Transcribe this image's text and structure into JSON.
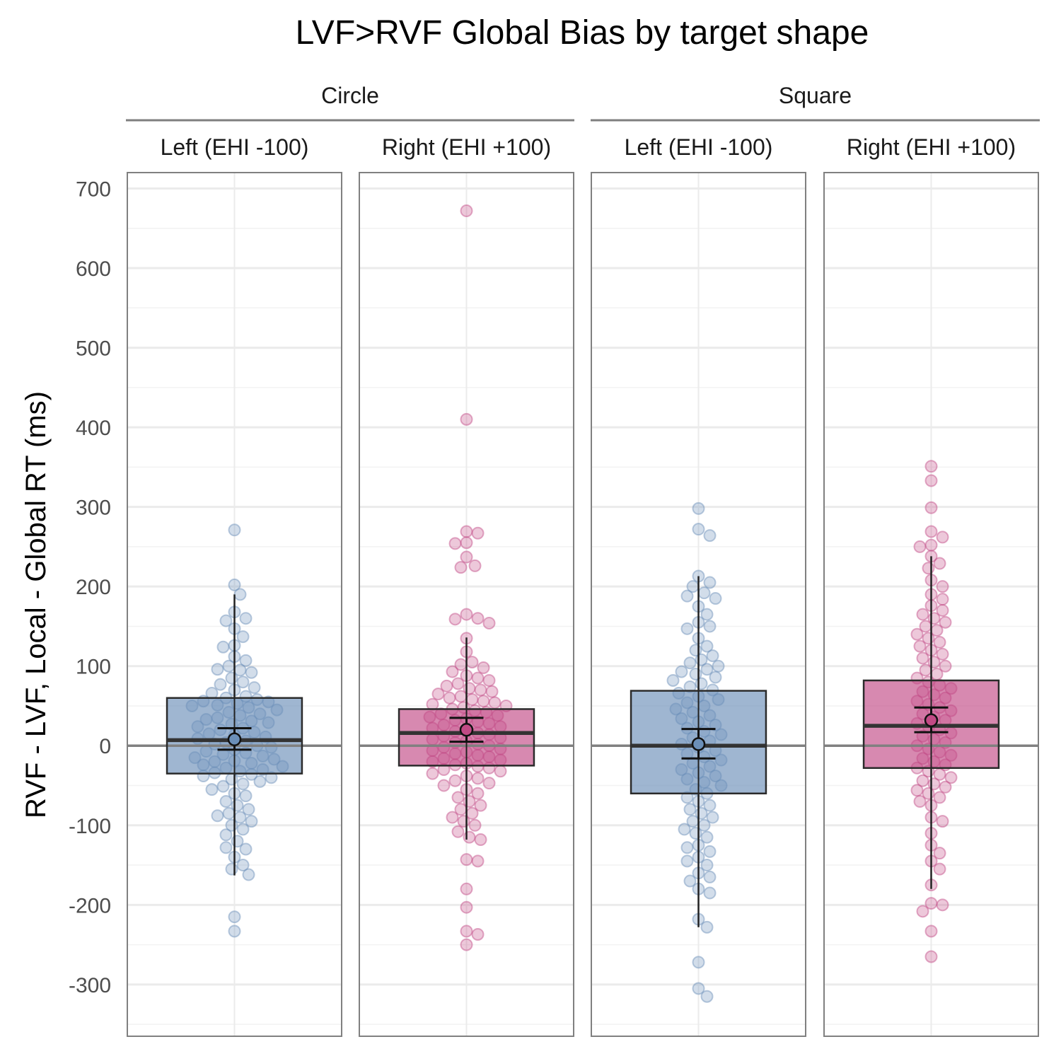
{
  "chart_data": {
    "type": "box",
    "title": "LVF>RVF Global Bias by target shape",
    "ylabel": "RVF - LVF, Local - Global RT (ms)",
    "xlabel": "",
    "ylim": [
      -365,
      720
    ],
    "yticks": [
      700,
      600,
      500,
      400,
      300,
      200,
      100,
      0,
      -100,
      -200,
      -300
    ],
    "ytick_labels": [
      "700",
      "600",
      "500",
      "400",
      "300",
      "200",
      "100",
      "0",
      "-100",
      "-200",
      "-300"
    ],
    "reference_line": 0,
    "grid": true,
    "legend": "none",
    "colors": {
      "Left (EHI -100)": "#6b8fb8",
      "Right (EHI +100)": "#c24a85"
    },
    "groups": [
      {
        "name": "Circle",
        "panels": [
          {
            "name": "Left (EHI -100)",
            "box": {
              "q1": -35,
              "median": 7,
              "q3": 60,
              "whisker_low": -163,
              "whisker_high": 190
            },
            "mean": 8,
            "ci": [
              -5,
              22
            ],
            "points": [
              271,
              202,
              190,
              168,
              160,
              157,
              147,
              137,
              126,
              124,
              112,
              107,
              100,
              96,
              95,
              92,
              85,
              80,
              77,
              73,
              70,
              66,
              62,
              60,
              58,
              56,
              55,
              53,
              51,
              50,
              48,
              45,
              42,
              40,
              38,
              35,
              33,
              31,
              29,
              27,
              24,
              22,
              20,
              17,
              15,
              13,
              11,
              9,
              6,
              4,
              2,
              0,
              -2,
              -5,
              -7,
              -9,
              -11,
              -13,
              -15,
              -17,
              -19,
              -20,
              -22,
              -24,
              -26,
              -28,
              -30,
              -32,
              -34,
              -36,
              -38,
              -40,
              -42,
              -45,
              -48,
              -51,
              -55,
              -60,
              -63,
              -70,
              -75,
              -80,
              -85,
              -88,
              -90,
              -95,
              -100,
              -105,
              -112,
              -120,
              -128,
              -130,
              -140,
              -150,
              -155,
              -162,
              -215,
              -233
            ]
          },
          {
            "name": "Right (EHI +100)",
            "box": {
              "q1": -25,
              "median": 16,
              "q3": 46,
              "whisker_low": -118,
              "whisker_high": 136
            },
            "mean": 20,
            "ci": [
              5,
              35
            ],
            "points": [
              672,
              410,
              269,
              267,
              255,
              254,
              237,
              226,
              224,
              165,
              160,
              159,
              154,
              135,
              118,
              105,
              102,
              98,
              93,
              88,
              85,
              82,
              78,
              75,
              72,
              70,
              68,
              65,
              62,
              60,
              58,
              56,
              54,
              52,
              50,
              48,
              46,
              44,
              42,
              40,
              38,
              36,
              34,
              32,
              30,
              28,
              26,
              24,
              22,
              20,
              18,
              16,
              14,
              12,
              10,
              8,
              6,
              4,
              2,
              0,
              -2,
              -4,
              -6,
              -8,
              -10,
              -12,
              -14,
              -16,
              -18,
              -20,
              -22,
              -24,
              -26,
              -28,
              -30,
              -32,
              -35,
              -38,
              -41,
              -44,
              -47,
              -50,
              -55,
              -60,
              -65,
              -70,
              -75,
              -80,
              -85,
              -90,
              -95,
              -100,
              -108,
              -115,
              -118,
              -143,
              -145,
              -180,
              -203,
              -233,
              -237,
              -250
            ]
          }
        ]
      },
      {
        "name": "Square",
        "panels": [
          {
            "name": "Left (EHI -100)",
            "box": {
              "q1": -60,
              "median": 0,
              "q3": 69,
              "whisker_low": -228,
              "whisker_high": 213
            },
            "mean": 2,
            "ci": [
              -16,
              21
            ],
            "points": [
              298,
              272,
              264,
              213,
              205,
              200,
              192,
              188,
              185,
              175,
              165,
              155,
              150,
              147,
              135,
              125,
              120,
              113,
              108,
              104,
              100,
              96,
              93,
              90,
              86,
              82,
              78,
              74,
              70,
              66,
              62,
              58,
              54,
              50,
              46,
              42,
              38,
              34,
              30,
              26,
              22,
              18,
              14,
              10,
              6,
              2,
              -2,
              -6,
              -10,
              -14,
              -18,
              -22,
              -26,
              -30,
              -34,
              -38,
              -42,
              -46,
              -50,
              -55,
              -60,
              -65,
              -70,
              -75,
              -80,
              -85,
              -90,
              -95,
              -100,
              -105,
              -110,
              -115,
              -125,
              -128,
              -133,
              -140,
              -145,
              -150,
              -160,
              -165,
              -170,
              -180,
              -185,
              -218,
              -228,
              -272,
              -305,
              -315
            ]
          },
          {
            "name": "Right (EHI +100)",
            "box": {
              "q1": -28,
              "median": 25,
              "q3": 82,
              "whisker_low": -180,
              "whisker_high": 238
            },
            "mean": 32,
            "ci": [
              17,
              48
            ],
            "points": [
              351,
              333,
              299,
              269,
              262,
              252,
              250,
              238,
              229,
              223,
              208,
              200,
              190,
              184,
              176,
              170,
              165,
              160,
              155,
              150,
              145,
              140,
              135,
              130,
              125,
              120,
              115,
              110,
              105,
              100,
              95,
              90,
              85,
              80,
              76,
              72,
              68,
              64,
              60,
              56,
              52,
              48,
              44,
              40,
              36,
              32,
              28,
              24,
              20,
              16,
              12,
              8,
              4,
              0,
              -4,
              -8,
              -12,
              -16,
              -20,
              -24,
              -28,
              -32,
              -36,
              -40,
              -44,
              -48,
              -52,
              -56,
              -60,
              -65,
              -70,
              -75,
              -90,
              -95,
              -110,
              -125,
              -135,
              -145,
              -155,
              -175,
              -198,
              -200,
              -208,
              -233,
              -265
            ]
          }
        ]
      }
    ]
  }
}
